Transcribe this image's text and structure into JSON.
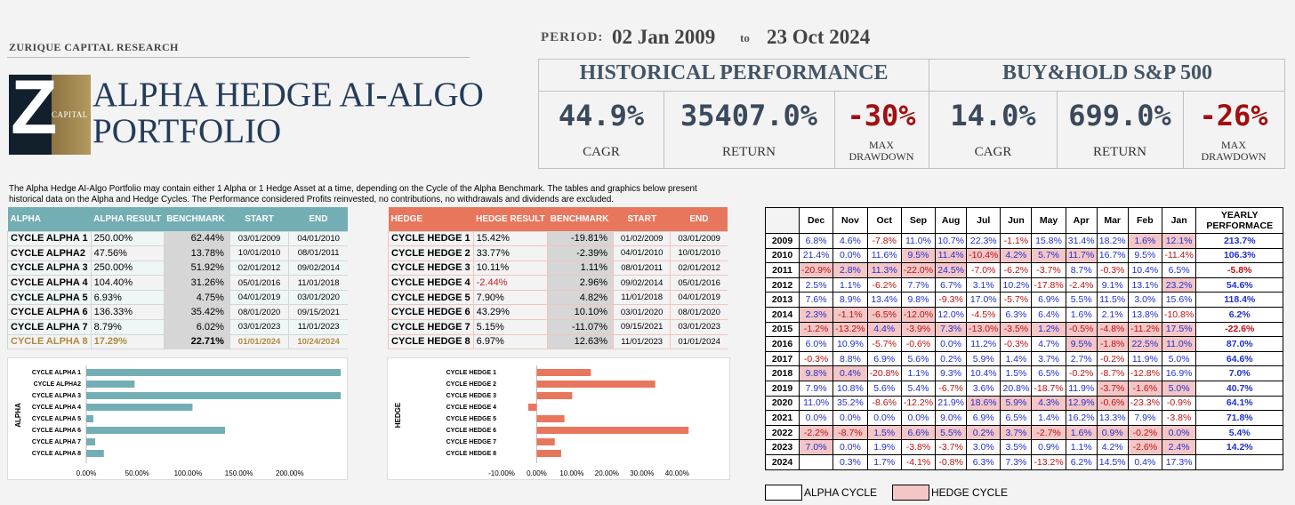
{
  "header": {
    "firm": "ZURIQUE CAPITAL RESEARCH",
    "logo_letter": "Z",
    "logo_text": "CAPITAL",
    "title_line1": "ALPHA HEDGE AI-ALGO",
    "title_line2": "PORTFOLIO"
  },
  "period": {
    "label": "PERIOD:",
    "start": "02 Jan 2009",
    "to": "to",
    "end": "23 Oct 2024"
  },
  "performance": {
    "historical": {
      "title": "HISTORICAL PERFORMANCE",
      "cagr": "44.9%",
      "return": "35407.0%",
      "max_drawdown": "-30%"
    },
    "buyhold": {
      "title": "BUY&HOLD S&P 500",
      "cagr": "14.0%",
      "return": "699.0%",
      "max_drawdown": "-26%"
    },
    "labels": {
      "cagr": "CAGR",
      "return": "RETURN",
      "max_dd_1": "MAX",
      "max_dd_2": "DRAWDOWN"
    }
  },
  "description": "The Alpha Hedge AI-Algo Portfolio may contain either 1 Alpha or 1 Hedge Asset at a time, depending on the Cycle of the Alpha Benchmark. The tables and graphics below present historical data on the Alpha and Hedge Cycles. The Performance considered Profits reinvested, no contributions, no withdrawals and dividends are excluded.",
  "alpha_table": {
    "headers": [
      "ALPHA",
      "ALPHA RESULT",
      "BENCHMARK",
      "START",
      "END"
    ],
    "rows": [
      [
        "CYCLE ALPHA 1",
        "250.00%",
        "62.44%",
        "03/01/2009",
        "04/01/2010"
      ],
      [
        "CYCLE ALPHA2",
        "47.56%",
        "13.78%",
        "10/01/2010",
        "08/01/2011"
      ],
      [
        "CYCLE ALPHA 3",
        "250.00%",
        "51.92%",
        "02/01/2012",
        "09/02/2014"
      ],
      [
        "CYCLE ALPHA 4",
        "104.40%",
        "31.26%",
        "05/01/2016",
        "11/01/2018"
      ],
      [
        "CYCLE ALPHA 5",
        "6.93%",
        "4.75%",
        "04/01/2019",
        "03/01/2020"
      ],
      [
        "CYCLE ALPHA 6",
        "136.33%",
        "35.42%",
        "08/01/2020",
        "09/15/2021"
      ],
      [
        "CYCLE ALPHA 7",
        "8.79%",
        "6.02%",
        "03/01/2023",
        "11/01/2023"
      ],
      [
        "CYCLE ALPHA 8",
        "17.29%",
        "22.71%",
        "01/01/2024",
        "10/24/2024"
      ]
    ]
  },
  "hedge_table": {
    "headers": [
      "HEDGE",
      "HEDGE RESULT",
      "BENCHMARK",
      "START",
      "END"
    ],
    "rows": [
      [
        "CYCLE HEDGE 1",
        "15.42%",
        "-19.81%",
        "01/02/2009",
        "03/01/2009"
      ],
      [
        "CYCLE HEDGE 2",
        "33.77%",
        "-2.39%",
        "04/01/2010",
        "10/01/2010"
      ],
      [
        "CYCLE HEDGE 3",
        "10.11%",
        "1.11%",
        "08/01/2011",
        "02/01/2012"
      ],
      [
        "CYCLE HEDGE 4",
        "-2.44%",
        "2.96%",
        "09/02/2014",
        "05/01/2016"
      ],
      [
        "CYCLE HEDGE 5",
        "7.90%",
        "4.82%",
        "11/01/2018",
        "04/01/2019"
      ],
      [
        "CYCLE HEDGE 6",
        "43.29%",
        "10.10%",
        "03/01/2020",
        "08/01/2020"
      ],
      [
        "CYCLE HEDGE 7",
        "5.15%",
        "-11.07%",
        "09/15/2021",
        "03/01/2023"
      ],
      [
        "CYCLE HEDGE 8",
        "6.97%",
        "12.63%",
        "11/01/2023",
        "01/01/2024"
      ]
    ]
  },
  "chart_data": [
    {
      "type": "bar",
      "orientation": "horizontal",
      "ylabel": "ALPHA",
      "categories": [
        "CYCLE ALPHA 1",
        "CYCLE ALPHA2",
        "CYCLE ALPHA 3",
        "CYCLE ALPHA 4",
        "CYCLE ALPHA 5",
        "CYCLE ALPHA 6",
        "CYCLE ALPHA 7",
        "CYCLE ALPHA 8"
      ],
      "values": [
        250.0,
        47.56,
        250.0,
        104.4,
        6.93,
        136.33,
        8.79,
        17.29
      ],
      "ticks": [
        "0.00%",
        "50.00%",
        "100.00%",
        "150.00%",
        "200.00%"
      ],
      "xlim": [
        0,
        250
      ],
      "color": "#72aeb4"
    },
    {
      "type": "bar",
      "orientation": "horizontal",
      "ylabel": "HEDGE",
      "categories": [
        "CYCLE HEDGE 1",
        "CYCLE HEDGE 2",
        "CYCLE HEDGE 3",
        "CYCLE HEDGE 4",
        "CYCLE HEDGE 5",
        "CYCLE HEDGE 6",
        "CYCLE HEDGE 7",
        "CYCLE HEDGE 8"
      ],
      "values": [
        15.42,
        33.77,
        10.11,
        -2.44,
        7.9,
        43.29,
        5.15,
        6.97
      ],
      "ticks": [
        "-10.00%",
        "0.00%",
        "10.00%",
        "20.00%",
        "30.00%",
        "40.00%"
      ],
      "xlim": [
        -10,
        45
      ],
      "color": "#e8765d"
    }
  ],
  "yearly": {
    "headers": [
      "Dec",
      "Nov",
      "Oct",
      "Sep",
      "Aug",
      "Jul",
      "Jun",
      "May",
      "Apr",
      "Mar",
      "Feb",
      "Jan"
    ],
    "total_header_1": "YEARLY",
    "total_header_2": "PERFORMACE",
    "rows": [
      {
        "year": "2009",
        "cells": [
          "6.8%",
          "4.6%",
          "-7.8%",
          "11.0%",
          "10.7%",
          "22.3%",
          "-1.1%",
          "15.8%",
          "31.4%",
          "18.2%",
          "1.6%",
          "12.1%"
        ],
        "hedge": [
          10,
          11
        ],
        "total": "213.7%"
      },
      {
        "year": "2010",
        "cells": [
          "21.4%",
          "0.0%",
          "11.6%",
          "9.5%",
          "11.4%",
          "-10.4%",
          "4.2%",
          "5.7%",
          "11.7%",
          "16.7%",
          "9.5%",
          "-11.4%"
        ],
        "hedge": [
          3,
          4,
          5,
          6,
          7,
          8
        ],
        "total": "106.3%"
      },
      {
        "year": "2011",
        "cells": [
          "-20.9%",
          "2.8%",
          "11.3%",
          "-22.0%",
          "24.5%",
          "-7.0%",
          "-6.2%",
          "-3.7%",
          "8.7%",
          "-0.3%",
          "10.4%",
          "6.5%"
        ],
        "hedge": [
          0,
          1,
          2,
          3,
          4
        ],
        "total": "-5.8%"
      },
      {
        "year": "2012",
        "cells": [
          "2.5%",
          "1.1%",
          "-6.2%",
          "7.7%",
          "6.7%",
          "3.1%",
          "10.2%",
          "-17.8%",
          "-2.4%",
          "9.1%",
          "13.1%",
          "23.2%"
        ],
        "hedge": [
          11
        ],
        "total": "54.6%"
      },
      {
        "year": "2013",
        "cells": [
          "7.6%",
          "8.9%",
          "13.4%",
          "9.8%",
          "-9.3%",
          "17.0%",
          "-5.7%",
          "6.9%",
          "5.5%",
          "11.5%",
          "3.0%",
          "15.6%"
        ],
        "hedge": [],
        "total": "118.4%"
      },
      {
        "year": "2014",
        "cells": [
          "2.3%",
          "-1.1%",
          "-6.5%",
          "-12.0%",
          "12.0%",
          "-4.5%",
          "6.3%",
          "6.4%",
          "1.6%",
          "2.1%",
          "13.8%",
          "-10.8%"
        ],
        "hedge": [
          0,
          1,
          2,
          3
        ],
        "total": "6.2%"
      },
      {
        "year": "2015",
        "cells": [
          "-1.2%",
          "-13.2%",
          "4.4%",
          "-3.9%",
          "7.3%",
          "-13.0%",
          "-3.5%",
          "1.2%",
          "-0.5%",
          "-4.8%",
          "-11.2%",
          "17.5%"
        ],
        "hedge": [
          0,
          1,
          2,
          3,
          4,
          5,
          6,
          7,
          8,
          9,
          10,
          11
        ],
        "total": "-22.6%"
      },
      {
        "year": "2016",
        "cells": [
          "6.0%",
          "10.9%",
          "-5.7%",
          "-0.6%",
          "0.0%",
          "11.2%",
          "-0.3%",
          "4.7%",
          "9.5%",
          "-1.8%",
          "22.5%",
          "11.0%"
        ],
        "hedge": [
          8,
          9,
          10,
          11
        ],
        "total": "87.0%"
      },
      {
        "year": "2017",
        "cells": [
          "-0.3%",
          "8.8%",
          "6.9%",
          "5.6%",
          "0.2%",
          "5.9%",
          "1.4%",
          "3.7%",
          "2.7%",
          "-0.2%",
          "11.9%",
          "5.0%"
        ],
        "hedge": [],
        "total": "64.6%"
      },
      {
        "year": "2018",
        "cells": [
          "9.8%",
          "0.4%",
          "-20.8%",
          "1.1%",
          "9.3%",
          "10.4%",
          "1.5%",
          "6.5%",
          "-0.2%",
          "-8.7%",
          "-12.8%",
          "16.9%"
        ],
        "hedge": [
          0,
          1
        ],
        "total": "7.0%"
      },
      {
        "year": "2019",
        "cells": [
          "7.9%",
          "10.8%",
          "5.6%",
          "5.4%",
          "-6.7%",
          "3.6%",
          "20.8%",
          "-18.7%",
          "11.9%",
          "-3.7%",
          "-1.6%",
          "5.0%"
        ],
        "hedge": [
          9,
          10,
          11
        ],
        "total": "40.7%"
      },
      {
        "year": "2020",
        "cells": [
          "11.0%",
          "35.2%",
          "-8.6%",
          "-12.2%",
          "21.9%",
          "18.6%",
          "5.9%",
          "4.3%",
          "12.9%",
          "-0.6%",
          "-23.3%",
          "-0.9%"
        ],
        "hedge": [
          5,
          6,
          7,
          8,
          9
        ],
        "total": "64.1%"
      },
      {
        "year": "2021",
        "cells": [
          "0.0%",
          "0.0%",
          "0.0%",
          "0.0%",
          "9.0%",
          "6.9%",
          "6.5%",
          "1.4%",
          "16.2%",
          "13.3%",
          "7.9%",
          "-3.8%"
        ],
        "hedge": [],
        "total": "71.8%"
      },
      {
        "year": "2022",
        "cells": [
          "-2.2%",
          "-8.7%",
          "1.5%",
          "6.6%",
          "5.5%",
          "0.2%",
          "3.7%",
          "-2.7%",
          "1.6%",
          "0.9%",
          "-0.2%",
          "0.0%"
        ],
        "hedge": [
          0,
          1,
          2,
          3,
          4,
          5,
          6,
          7,
          8,
          9,
          10,
          11
        ],
        "total": "5.4%"
      },
      {
        "year": "2023",
        "cells": [
          "7.0%",
          "0.0%",
          "1.9%",
          "-3.8%",
          "-3.7%",
          "3.0%",
          "3.5%",
          "0.9%",
          "1.1%",
          "4.2%",
          "-2.6%",
          "2.4%"
        ],
        "hedge": [
          0,
          10,
          11
        ],
        "total": "14.2%"
      },
      {
        "year": "2024",
        "cells": [
          "",
          "0.3%",
          "1.7%",
          "-4.1%",
          "-0.8%",
          "6.3%",
          "7.3%",
          "-13.2%",
          "6.2%",
          "14.5%",
          "0.4%",
          "17.3%"
        ],
        "hedge": [],
        "total": ""
      }
    ]
  },
  "legend": {
    "alpha": "ALPHA CYCLE",
    "hedge": "HEDGE CYCLE"
  },
  "colors": {
    "alpha": "#72aeb4",
    "hedge": "#e8765d",
    "hedge_cell": "#f4c6c6",
    "title": "#243c5a",
    "negative": "#c01010",
    "positive": "#2030d0"
  }
}
